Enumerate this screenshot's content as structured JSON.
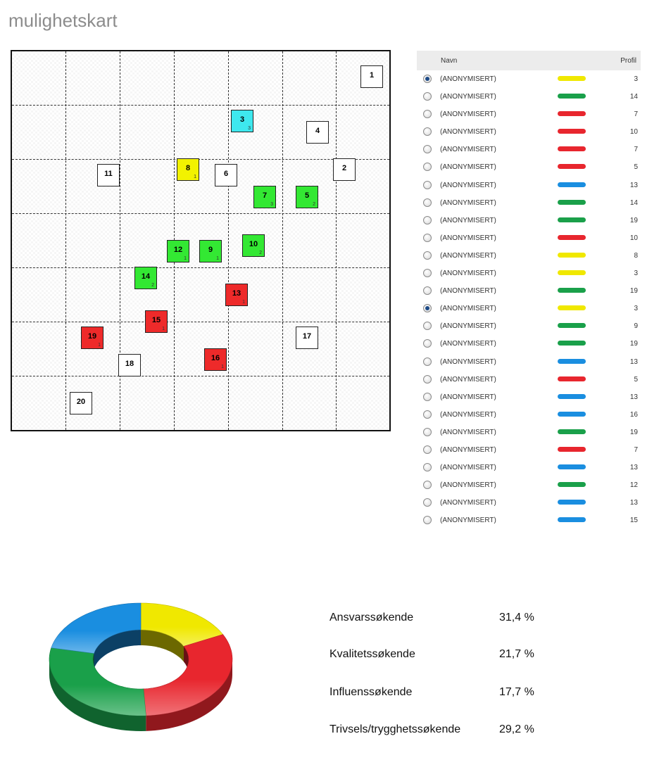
{
  "title": "mulighetskart",
  "map": {
    "boxes": [
      {
        "num": "1",
        "sub": "",
        "color": "#ffffff"
      },
      {
        "num": "3",
        "sub": "3",
        "color": "#3ee8ee"
      },
      {
        "num": "4",
        "sub": "",
        "color": "#ffffff"
      },
      {
        "num": "2",
        "sub": "",
        "color": "#ffffff"
      },
      {
        "num": "11",
        "sub": "",
        "color": "#ffffff"
      },
      {
        "num": "8",
        "sub": "1",
        "color": "#f2f200"
      },
      {
        "num": "6",
        "sub": "",
        "color": "#ffffff"
      },
      {
        "num": "7",
        "sub": "3",
        "color": "#33e833"
      },
      {
        "num": "5",
        "sub": "2",
        "color": "#33e833"
      },
      {
        "num": "12",
        "sub": "1",
        "color": "#33e833"
      },
      {
        "num": "9",
        "sub": "1",
        "color": "#33e833"
      },
      {
        "num": "10",
        "sub": "2",
        "color": "#33e833"
      },
      {
        "num": "14",
        "sub": "2",
        "color": "#33e833"
      },
      {
        "num": "13",
        "sub": "1",
        "color": "#ee2a2a"
      },
      {
        "num": "15",
        "sub": "1",
        "color": "#ee2a2a"
      },
      {
        "num": "19",
        "sub": "1",
        "color": "#ee2a2a"
      },
      {
        "num": "17",
        "sub": "",
        "color": "#ffffff"
      },
      {
        "num": "18",
        "sub": "",
        "color": "#ffffff"
      },
      {
        "num": "16",
        "sub": "1",
        "color": "#ee2a2a"
      },
      {
        "num": "20",
        "sub": "",
        "color": "#ffffff"
      }
    ]
  },
  "list": {
    "header": {
      "name": "Navn",
      "profile": "Profil"
    },
    "rows": [
      {
        "name": "(ANONYMISERT)",
        "color": "#f0e800",
        "profile": "3",
        "selected": true
      },
      {
        "name": "(ANONYMISERT)",
        "color": "#1aa04a",
        "profile": "14",
        "selected": false
      },
      {
        "name": "(ANONYMISERT)",
        "color": "#e8262e",
        "profile": "7",
        "selected": false
      },
      {
        "name": "(ANONYMISERT)",
        "color": "#e8262e",
        "profile": "10",
        "selected": false
      },
      {
        "name": "(ANONYMISERT)",
        "color": "#e8262e",
        "profile": "7",
        "selected": false
      },
      {
        "name": "(ANONYMISERT)",
        "color": "#e8262e",
        "profile": "5",
        "selected": false
      },
      {
        "name": "(ANONYMISERT)",
        "color": "#1a8ee0",
        "profile": "13",
        "selected": false
      },
      {
        "name": "(ANONYMISERT)",
        "color": "#1aa04a",
        "profile": "14",
        "selected": false
      },
      {
        "name": "(ANONYMISERT)",
        "color": "#1aa04a",
        "profile": "19",
        "selected": false
      },
      {
        "name": "(ANONYMISERT)",
        "color": "#e8262e",
        "profile": "10",
        "selected": false
      },
      {
        "name": "(ANONYMISERT)",
        "color": "#f0e800",
        "profile": "8",
        "selected": false
      },
      {
        "name": "(ANONYMISERT)",
        "color": "#f0e800",
        "profile": "3",
        "selected": false
      },
      {
        "name": "(ANONYMISERT)",
        "color": "#1aa04a",
        "profile": "19",
        "selected": false
      },
      {
        "name": "(ANONYMISERT)",
        "color": "#f0e800",
        "profile": "3",
        "selected": true
      },
      {
        "name": "(ANONYMISERT)",
        "color": "#1aa04a",
        "profile": "9",
        "selected": false
      },
      {
        "name": "(ANONYMISERT)",
        "color": "#1aa04a",
        "profile": "19",
        "selected": false
      },
      {
        "name": "(ANONYMISERT)",
        "color": "#1a8ee0",
        "profile": "13",
        "selected": false
      },
      {
        "name": "(ANONYMISERT)",
        "color": "#e8262e",
        "profile": "5",
        "selected": false
      },
      {
        "name": "(ANONYMISERT)",
        "color": "#1a8ee0",
        "profile": "13",
        "selected": false
      },
      {
        "name": "(ANONYMISERT)",
        "color": "#1a8ee0",
        "profile": "16",
        "selected": false
      },
      {
        "name": "(ANONYMISERT)",
        "color": "#1aa04a",
        "profile": "19",
        "selected": false
      },
      {
        "name": "(ANONYMISERT)",
        "color": "#e8262e",
        "profile": "7",
        "selected": false
      },
      {
        "name": "(ANONYMISERT)",
        "color": "#1a8ee0",
        "profile": "13",
        "selected": false
      },
      {
        "name": "(ANONYMISERT)",
        "color": "#1aa04a",
        "profile": "12",
        "selected": false
      },
      {
        "name": "(ANONYMISERT)",
        "color": "#1a8ee0",
        "profile": "13",
        "selected": false
      },
      {
        "name": "(ANONYMISERT)",
        "color": "#1a8ee0",
        "profile": "15",
        "selected": false
      }
    ]
  },
  "summary": {
    "items": [
      {
        "label": "Ansvarssøkende",
        "value": "31,4 %"
      },
      {
        "label": "Kvalitetssøkende",
        "value": "21,7 %"
      },
      {
        "label": "Influenssøkende",
        "value": "17,7 %"
      },
      {
        "label": "Trivsels/trygghetssøkende",
        "value": "29,2 %"
      }
    ]
  },
  "chart_data": {
    "type": "pie",
    "categories": [
      "yellow",
      "red",
      "green",
      "blue"
    ],
    "values": [
      17.7,
      31.4,
      29.2,
      21.7
    ],
    "colors": [
      "#f0e800",
      "#e8262e",
      "#1aa04a",
      "#1a8ee0"
    ],
    "title": ""
  }
}
